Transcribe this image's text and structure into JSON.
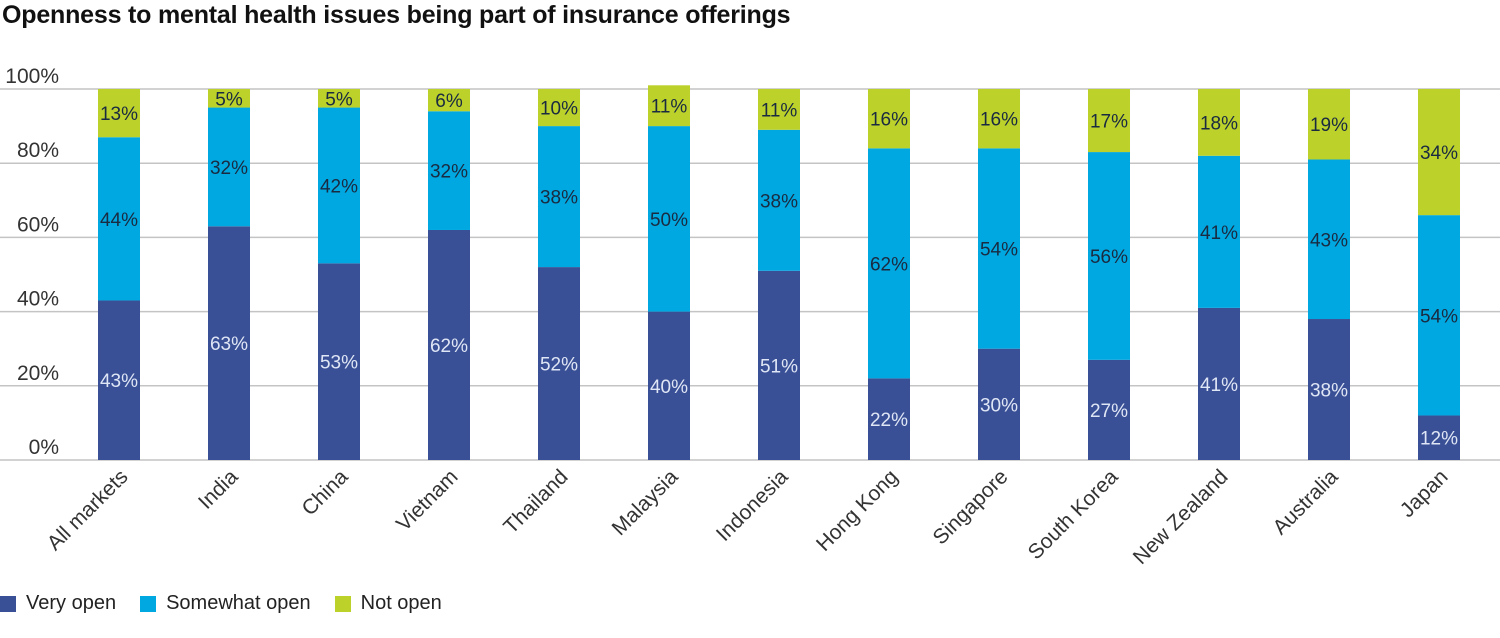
{
  "chart_data": {
    "type": "bar",
    "stacked": true,
    "title": "Openness to mental health issues being part of insurance offerings",
    "xlabel": "",
    "ylabel": "",
    "ylim": [
      0,
      100
    ],
    "yticks": [
      "0%",
      "20%",
      "40%",
      "60%",
      "80%",
      "100%"
    ],
    "grid": true,
    "legend_placement": "bottom-left",
    "categories": [
      "All markets",
      "India",
      "China",
      "Vietnam",
      "Thailand",
      "Malaysia",
      "Indonesia",
      "Hong Kong",
      "Singapore",
      "South Korea",
      "New Zealand",
      "Australia",
      "Japan"
    ],
    "series": [
      {
        "name": "Very open",
        "color": "#3a5096",
        "values": [
          43,
          63,
          53,
          62,
          52,
          40,
          51,
          22,
          30,
          27,
          41,
          38,
          12
        ]
      },
      {
        "name": "Somewhat open",
        "color": "#00a8e1",
        "values": [
          44,
          32,
          42,
          32,
          38,
          50,
          38,
          62,
          54,
          56,
          41,
          43,
          54
        ]
      },
      {
        "name": "Not open",
        "color": "#bcd22b",
        "values": [
          13,
          5,
          5,
          6,
          10,
          11,
          11,
          16,
          16,
          17,
          18,
          19,
          34
        ]
      }
    ]
  }
}
